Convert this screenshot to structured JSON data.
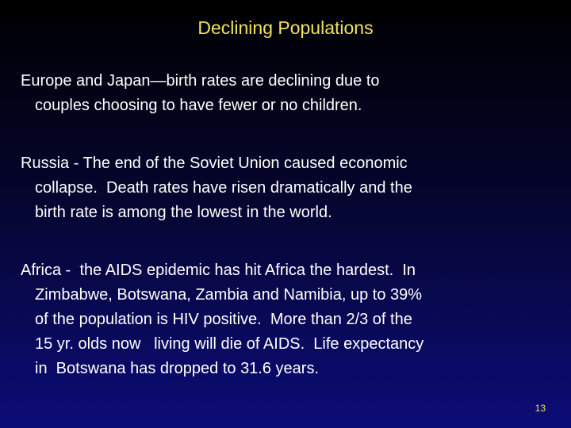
{
  "title": "Declining Populations",
  "paragraphs": [
    [
      "Europe and Japan—birth rates are declining due to",
      "couples choosing to have fewer or no children."
    ],
    [
      "Russia - The end of the Soviet Union caused economic",
      "collapse.  Death rates have risen dramatically and the",
      "birth rate is among the lowest in the world."
    ],
    [
      "Africa -  the AIDS epidemic has hit Africa the hardest.  In",
      "Zimbabwe, Botswana, Zambia and Namibia, up to 39%",
      "of the population is HIV positive.  More than 2/3 of the",
      "15 yr. olds now   living will die of AIDS.  Life expectancy",
      "in  Botswana has dropped to 31.6 years."
    ]
  ],
  "slide_number": "13"
}
